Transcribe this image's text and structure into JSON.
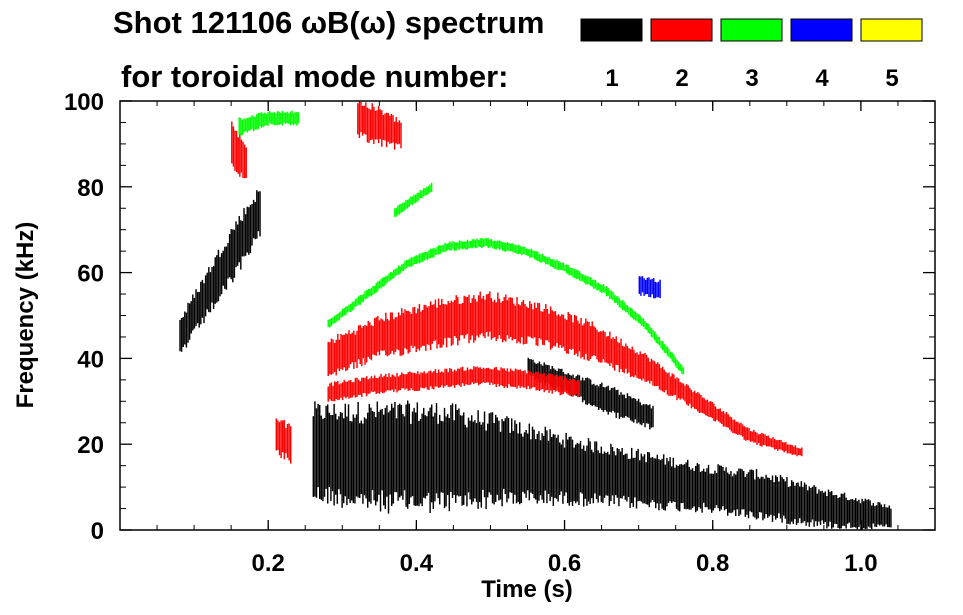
{
  "chart_data": {
    "type": "heatmap",
    "title_line1": "Shot 121106 ωB(ω) spectrum",
    "title_line2": "for toroidal mode number:",
    "xlabel": "Time (s)",
    "ylabel": "Frequency (kHz)",
    "xlim": [
      0.0,
      1.1
    ],
    "ylim": [
      0,
      100
    ],
    "xticks": [
      "0.2",
      "0.4",
      "0.6",
      "0.8",
      "1.0"
    ],
    "yticks": [
      "0",
      "20",
      "40",
      "60",
      "80",
      "100"
    ],
    "legend": [
      {
        "mode": "1",
        "color": "#000000"
      },
      {
        "mode": "2",
        "color": "#ff0000"
      },
      {
        "mode": "3",
        "color": "#00ff00"
      },
      {
        "mode": "4",
        "color": "#0000ff"
      },
      {
        "mode": "5",
        "color": "#ffff00"
      }
    ],
    "series": [
      {
        "mode": 1,
        "color": "#000000",
        "bands": [
          {
            "t": [
              0.26,
              1.04
            ],
            "f_center": [
              18,
              17,
              17,
              16,
              14,
              12,
              10,
              8,
              5,
              3
            ],
            "f_width": [
              20,
              22,
              22,
              18,
              14,
              12,
              10,
              10,
              8,
              5
            ]
          },
          {
            "t": [
              0.08,
              0.19
            ],
            "f_center": [
              45,
              55,
              65,
              75
            ],
            "f_width": [
              8,
              10,
              12,
              10
            ]
          },
          {
            "t": [
              0.55,
              0.72
            ],
            "f_center": [
              38,
              34,
              30,
              26
            ],
            "f_width": [
              4,
              5,
              6,
              5
            ]
          }
        ]
      },
      {
        "mode": 2,
        "color": "#ff0000",
        "bands": [
          {
            "t": [
              0.28,
              0.92
            ],
            "f_center": [
              40,
              45,
              48,
              50,
              48,
              44,
              38,
              30,
              22,
              18
            ],
            "f_width": [
              8,
              9,
              10,
              10,
              9,
              8,
              6,
              4,
              3,
              2
            ]
          },
          {
            "t": [
              0.28,
              0.62
            ],
            "f_center": [
              32,
              34,
              35,
              36,
              35,
              33
            ],
            "f_width": [
              4,
              4,
              4,
              4,
              4,
              4
            ]
          },
          {
            "t": [
              0.32,
              0.38
            ],
            "f_center": [
              96,
              94,
              92
            ],
            "f_width": [
              8,
              8,
              6
            ]
          },
          {
            "t": [
              0.21,
              0.23
            ],
            "f_center": [
              22,
              20
            ],
            "f_width": [
              8,
              8
            ]
          },
          {
            "t": [
              0.15,
              0.17
            ],
            "f_center": [
              90,
              85
            ],
            "f_width": [
              10,
              8
            ]
          }
        ]
      },
      {
        "mode": 3,
        "color": "#00ff00",
        "bands": [
          {
            "t": [
              0.28,
              0.76
            ],
            "f_center": [
              48,
              55,
              62,
              66,
              67,
              65,
              61,
              56,
              48,
              37
            ],
            "f_width": [
              2,
              2,
              2,
              2,
              2,
              2,
              2,
              2,
              2,
              2
            ]
          },
          {
            "t": [
              0.37,
              0.42
            ],
            "f_center": [
              74,
              77,
              80
            ],
            "f_width": [
              2,
              2,
              2
            ]
          },
          {
            "t": [
              0.16,
              0.24
            ],
            "f_center": [
              94,
              96,
              96
            ],
            "f_width": [
              4,
              3,
              3
            ]
          }
        ]
      },
      {
        "mode": 4,
        "color": "#0000ff",
        "bands": [
          {
            "t": [
              0.7,
              0.73
            ],
            "f_center": [
              57,
              56
            ],
            "f_width": [
              4,
              4
            ]
          }
        ]
      },
      {
        "mode": 5,
        "color": "#ffff00",
        "bands": []
      }
    ]
  }
}
